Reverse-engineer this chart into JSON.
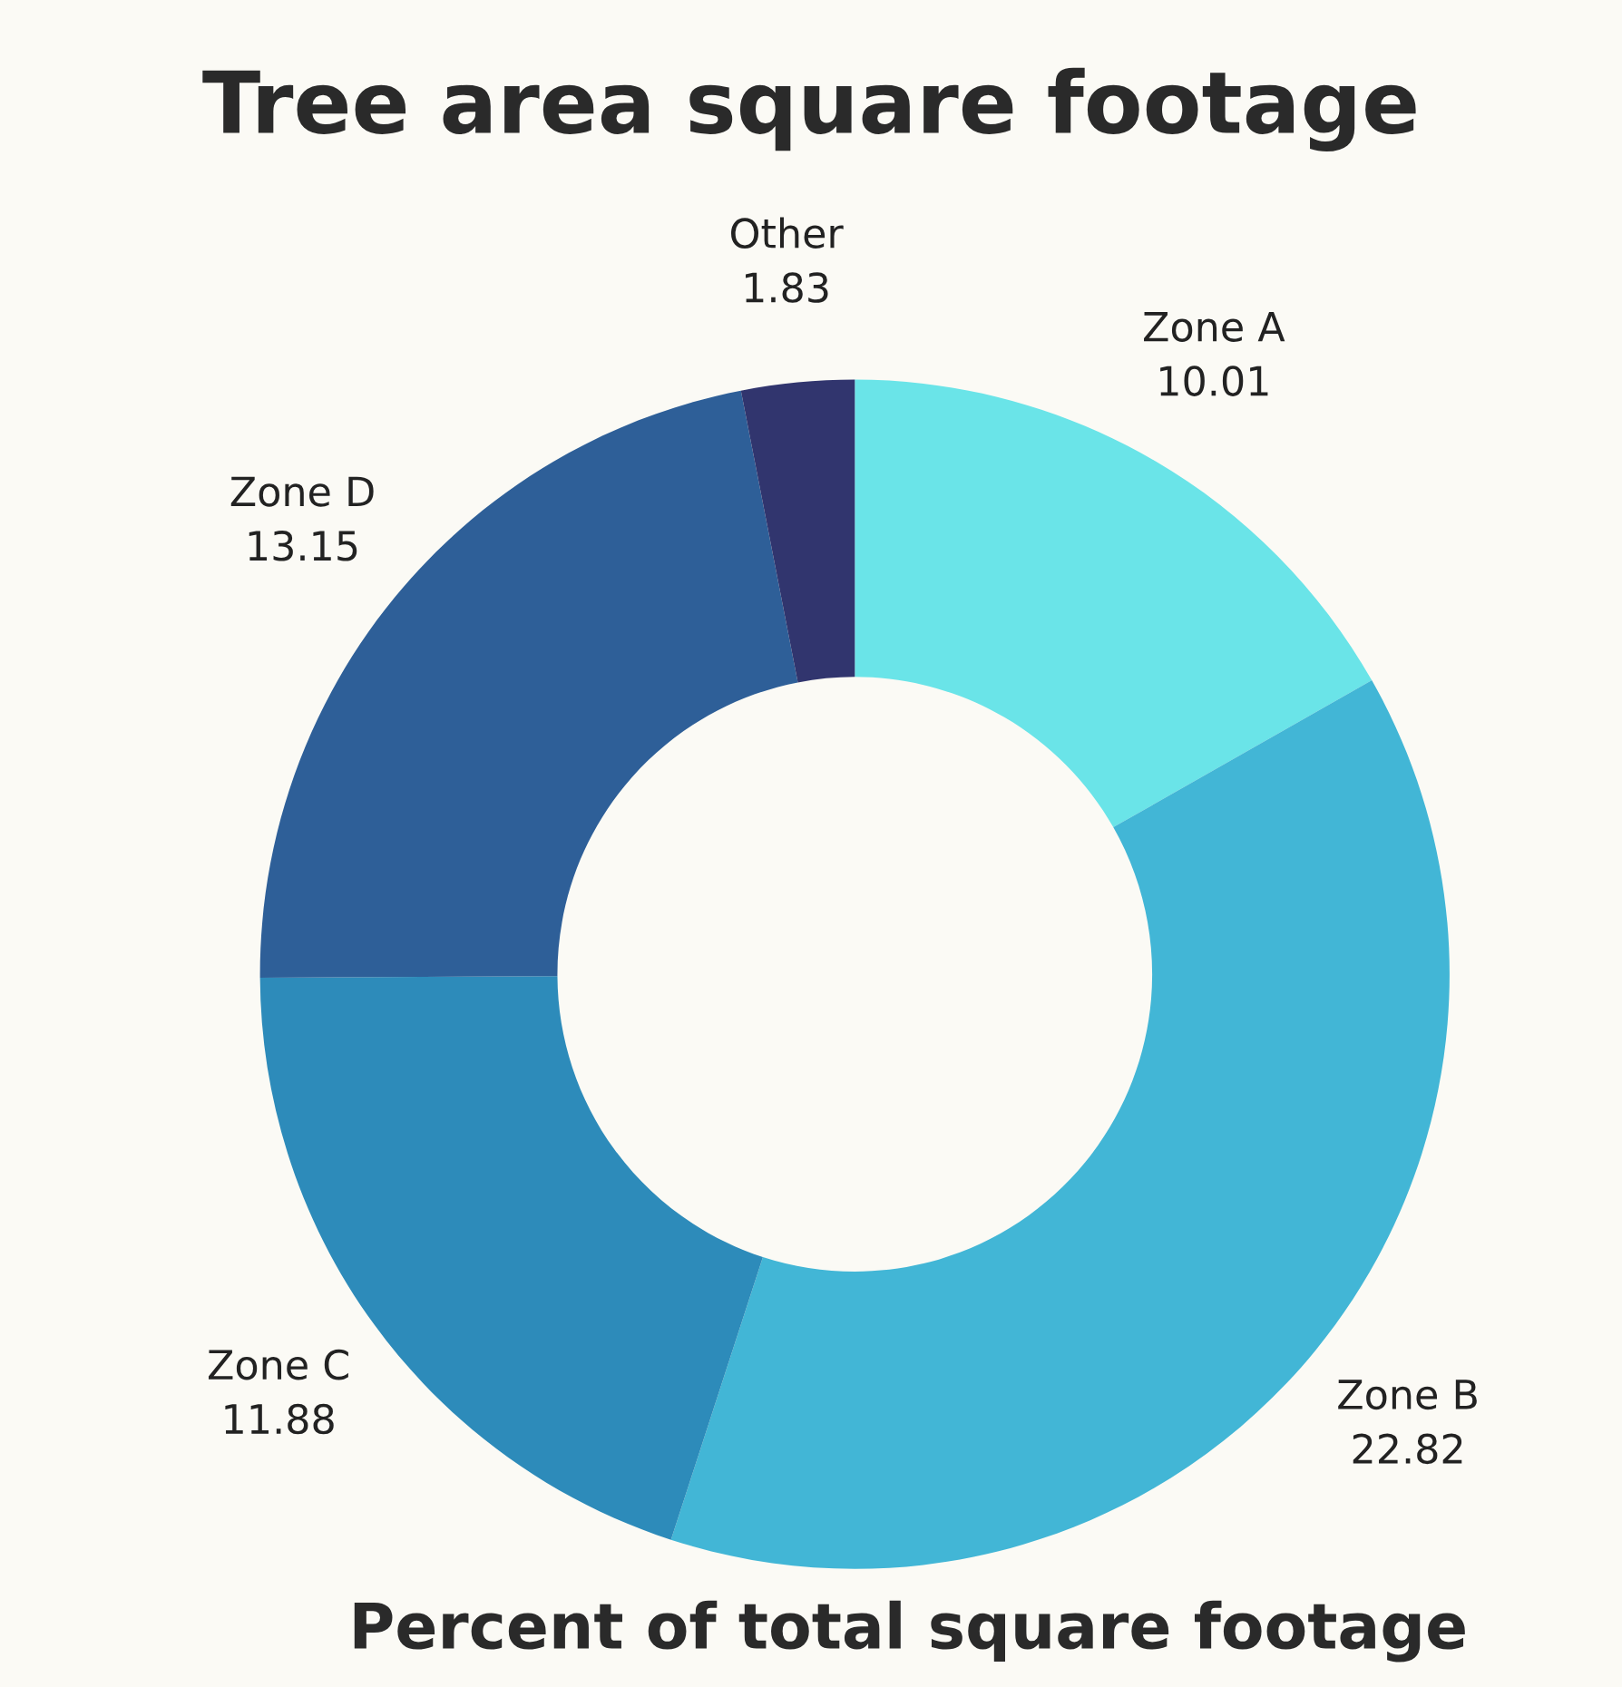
{
  "chart_data": {
    "type": "donut",
    "title": "Tree area square footage",
    "subtitle": "Percent of total square footage",
    "categories": [
      "Zone A",
      "Zone B",
      "Zone C",
      "Zone D",
      "Other"
    ],
    "values": [
      10.01,
      22.82,
      11.88,
      13.15,
      1.83
    ],
    "colors": [
      "#6ae4e8",
      "#42b6d6",
      "#2d8bba",
      "#2e5f98",
      "#31356e"
    ],
    "data_labels": true,
    "legend": false
  }
}
